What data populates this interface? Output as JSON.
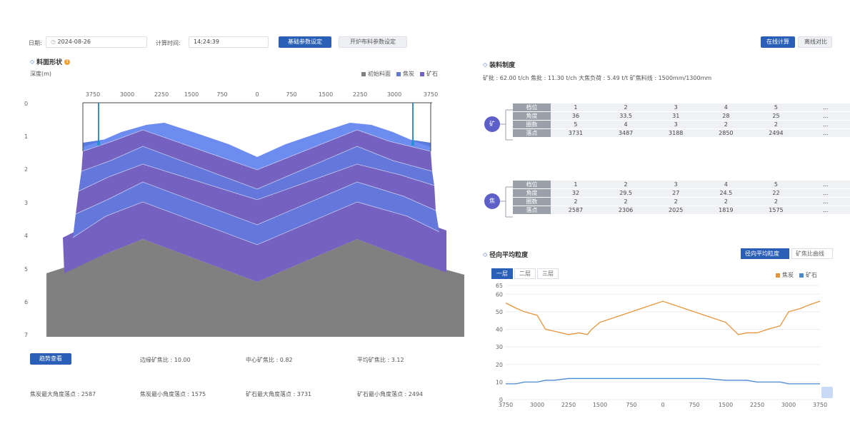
{
  "toolbar": {
    "date_label": "日期:",
    "date_value": "2024-08-26",
    "time_label": "计算时间:",
    "time_value": "14:24:39",
    "basic_params_button": "基础参数设定",
    "furnace_params_button": "开炉布料参数设定",
    "online_calc_button": "在线计算",
    "offline_compare_button": "离线对比"
  },
  "burden_profile": {
    "title": "料面形状",
    "y_axis_label": "深度(m)",
    "legend": [
      "初始料面",
      "焦炭",
      "矿石"
    ],
    "x_ticks": [
      "3750",
      "3000",
      "2250",
      "1500",
      "750",
      "0",
      "750",
      "1500",
      "2250",
      "3000",
      "3750"
    ],
    "y_ticks": [
      "0",
      "1",
      "2",
      "3",
      "4",
      "5",
      "6",
      "7"
    ],
    "trend_button": "趋势查看",
    "stats": {
      "edge_ore_ratio": "边缘矿焦比 : 10.00",
      "center_ore_ratio": "中心矿焦比 : 0.82",
      "avg_ore_ratio": "平均矿焦比 : 3.12",
      "coke_max_angle": "焦炭最大角度落点 : 2587",
      "coke_min_angle": "焦炭最小角度落点 : 1575",
      "ore_max_angle": "矿石最大角度落点 : 3731",
      "ore_min_angle": "矿石最小角度落点 : 2494"
    },
    "colors": {
      "coke": "#6478dc",
      "ore": "#7461c0",
      "initial": "#808080",
      "top": "#5a7ae0"
    }
  },
  "charging_system": {
    "title": "装料制度",
    "summary": "矿批 : 62.00 t/ch  焦批 : 11.30 t/ch  大焦负荷 : 5.49 t/t  矿焦料线 : 1500mm/1300mm",
    "ore_badge": "矿",
    "coke_badge": "焦",
    "ore_table": {
      "row_labels": [
        "档位",
        "角度",
        "圈数",
        "落点"
      ],
      "rows": [
        [
          "1",
          "2",
          "3",
          "4",
          "5",
          "..."
        ],
        [
          "36",
          "33.5",
          "31",
          "28",
          "25",
          "..."
        ],
        [
          "5",
          "4",
          "3",
          "2",
          "2",
          "..."
        ],
        [
          "3731",
          "3487",
          "3188",
          "2850",
          "2494",
          "..."
        ]
      ]
    },
    "coke_table": {
      "row_labels": [
        "档位",
        "角度",
        "圈数",
        "落点"
      ],
      "rows": [
        [
          "1",
          "2",
          "3",
          "4",
          "5",
          "..."
        ],
        [
          "32",
          "29.5",
          "27",
          "24.5",
          "22",
          "..."
        ],
        [
          "2",
          "2",
          "2",
          "2",
          "2",
          "..."
        ],
        [
          "2587",
          "2306",
          "2025",
          "1819",
          "1575",
          "..."
        ]
      ]
    }
  },
  "radial_size": {
    "title": "径向平均粒度",
    "tab_avg": "径向平均粒度",
    "tab_ore_ratio": "矿焦比曲线",
    "layer_tabs": [
      "一层",
      "二层",
      "三层"
    ],
    "legend_coke": "焦炭",
    "legend_ore": "矿石",
    "color_coke": "#e8953a",
    "color_ore": "#4a8ad0"
  },
  "chart_data": {
    "type": "line",
    "x_tick_labels": [
      "3750",
      "3000",
      "2250",
      "1500",
      "750",
      "0",
      "750",
      "1500",
      "2250",
      "3000",
      "3750"
    ],
    "y_ticks": [
      0,
      10,
      20,
      30,
      40,
      50,
      60,
      65
    ],
    "ylim": [
      0,
      65
    ],
    "x": [
      -3750,
      -3500,
      -3300,
      -3000,
      -2800,
      -2600,
      -2250,
      -2000,
      -1800,
      -1700,
      -1500,
      -1000,
      -500,
      0,
      500,
      1000,
      1500,
      1800,
      2000,
      2250,
      2500,
      2800,
      3000,
      3300,
      3500,
      3750
    ],
    "series": [
      {
        "name": "焦炭",
        "values": [
          55,
          52,
          50,
          48,
          40,
          39,
          37,
          38,
          37,
          40,
          44,
          48,
          52,
          56,
          52,
          48,
          44,
          37,
          38,
          38,
          40,
          42,
          50,
          52,
          54,
          56
        ]
      },
      {
        "name": "矿石",
        "values": [
          9,
          9,
          10,
          10,
          11,
          11,
          12,
          12,
          12,
          12,
          12,
          12,
          12,
          12,
          12,
          12,
          11,
          11,
          11,
          10,
          10,
          10,
          9,
          9,
          9,
          9
        ]
      }
    ]
  }
}
